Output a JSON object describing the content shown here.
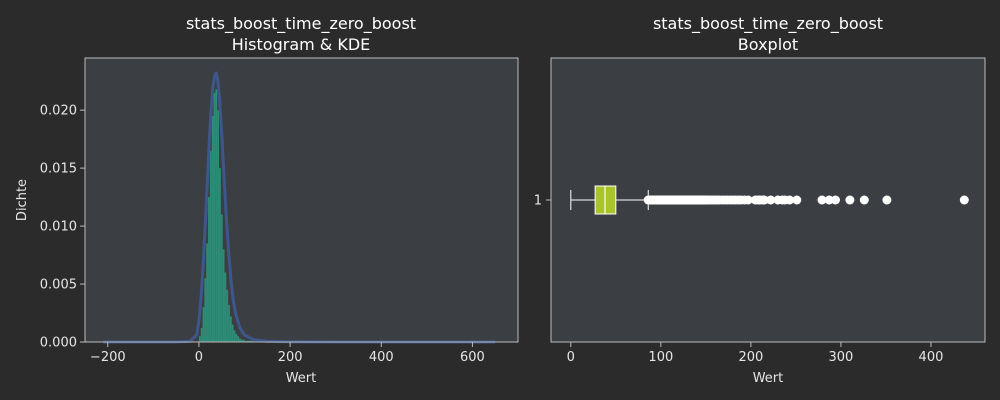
{
  "colors": {
    "figure_bg": "#2b2b2b",
    "axes_bg": "#3b3f43",
    "axes_edge": "#bbbbbb",
    "hist_fill": "#2a9a7e",
    "kde_line": "#3e5a93",
    "box_fill": "#a8c42a",
    "whisker": "#ffffff",
    "outlier": "#ffffff",
    "text": "#ffffff"
  },
  "chart_data": [
    {
      "type": "histogram+kde",
      "title": "stats_boost_time_zero_boost",
      "subtitle": "Histogram & KDE",
      "xlabel": "Wert",
      "ylabel": "Dichte",
      "xlim": [
        -250,
        700
      ],
      "ylim": [
        0,
        0.0245
      ],
      "xticks": [
        -200,
        0,
        200,
        400,
        600
      ],
      "xtick_labels": [
        "−200",
        "0",
        "200",
        "400",
        "600"
      ],
      "yticks": [
        0.0,
        0.005,
        0.01,
        0.015,
        0.02
      ],
      "ytick_labels": [
        "0.000",
        "0.005",
        "0.010",
        "0.015",
        "0.020"
      ],
      "grid": false,
      "hist_bins": [
        {
          "x0": 0,
          "x1": 4,
          "density": 0.0005
        },
        {
          "x0": 4,
          "x1": 8,
          "density": 0.0012
        },
        {
          "x0": 8,
          "x1": 12,
          "density": 0.003
        },
        {
          "x0": 12,
          "x1": 16,
          "density": 0.0055
        },
        {
          "x0": 16,
          "x1": 20,
          "density": 0.0085
        },
        {
          "x0": 20,
          "x1": 24,
          "density": 0.0125
        },
        {
          "x0": 24,
          "x1": 28,
          "density": 0.0165
        },
        {
          "x0": 28,
          "x1": 32,
          "density": 0.0195
        },
        {
          "x0": 32,
          "x1": 36,
          "density": 0.0215
        },
        {
          "x0": 36,
          "x1": 40,
          "density": 0.0218
        },
        {
          "x0": 40,
          "x1": 44,
          "density": 0.02
        },
        {
          "x0": 44,
          "x1": 48,
          "density": 0.015
        },
        {
          "x0": 48,
          "x1": 52,
          "density": 0.011
        },
        {
          "x0": 52,
          "x1": 56,
          "density": 0.008
        },
        {
          "x0": 56,
          "x1": 60,
          "density": 0.006
        },
        {
          "x0": 60,
          "x1": 64,
          "density": 0.0045
        },
        {
          "x0": 64,
          "x1": 68,
          "density": 0.0032
        },
        {
          "x0": 68,
          "x1": 72,
          "density": 0.0022
        },
        {
          "x0": 72,
          "x1": 76,
          "density": 0.0015
        },
        {
          "x0": 76,
          "x1": 80,
          "density": 0.001
        },
        {
          "x0": 80,
          "x1": 84,
          "density": 0.0007
        },
        {
          "x0": 84,
          "x1": 88,
          "density": 0.0005
        },
        {
          "x0": 88,
          "x1": 92,
          "density": 0.0003
        },
        {
          "x0": 92,
          "x1": 100,
          "density": 0.0002
        },
        {
          "x0": 100,
          "x1": 120,
          "density": 0.0001
        }
      ],
      "kde": {
        "x": [
          -210,
          -50,
          -20,
          -5,
          0,
          5,
          10,
          15,
          20,
          25,
          30,
          35,
          38,
          42,
          45,
          50,
          55,
          60,
          65,
          70,
          75,
          80,
          90,
          100,
          120,
          150,
          200,
          300,
          500,
          650
        ],
        "y": [
          0,
          0,
          5e-05,
          0.0006,
          0.0018,
          0.004,
          0.0072,
          0.011,
          0.0152,
          0.019,
          0.0218,
          0.0231,
          0.0232,
          0.0224,
          0.021,
          0.018,
          0.0143,
          0.0108,
          0.0078,
          0.0054,
          0.0037,
          0.0025,
          0.0012,
          0.0006,
          0.0002,
          5e-05,
          1e-05,
          0,
          0,
          0
        ]
      }
    },
    {
      "type": "box",
      "title": "stats_boost_time_zero_boost",
      "subtitle": "Boxplot",
      "xlabel": "Wert",
      "ylabel": "",
      "xlim": [
        -22,
        460
      ],
      "xticks": [
        0,
        100,
        200,
        300,
        400
      ],
      "xtick_labels": [
        "0",
        "100",
        "200",
        "300",
        "400"
      ],
      "category_labels": [
        "1"
      ],
      "grid": false,
      "box": {
        "whisker_low": 0,
        "q1": 27,
        "median": 38,
        "q3": 50,
        "whisker_high": 86
      },
      "outliers": [
        86,
        87,
        88,
        89,
        90,
        91,
        92,
        93,
        94,
        95,
        96,
        97,
        98,
        99,
        100,
        101,
        102,
        103,
        104,
        105,
        106,
        107,
        108,
        109,
        110,
        111,
        112,
        113,
        114,
        115,
        116,
        117,
        118,
        119,
        120,
        121,
        122,
        123,
        124,
        125,
        126,
        127,
        128,
        129,
        130,
        131,
        132,
        133,
        134,
        135,
        136,
        137,
        138,
        139,
        140,
        141,
        142,
        143,
        144,
        145,
        146,
        147,
        148,
        149,
        150,
        151,
        152,
        153,
        155,
        157,
        159,
        161,
        163,
        165,
        168,
        171,
        174,
        177,
        180,
        183,
        186,
        189,
        193,
        197,
        205,
        208,
        210,
        213,
        215,
        222,
        230,
        235,
        238,
        243,
        251,
        279,
        287,
        294,
        310,
        326,
        351,
        437
      ]
    }
  ]
}
